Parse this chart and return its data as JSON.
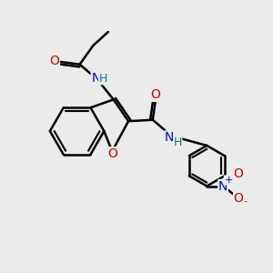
{
  "background_color": "#ebebeb",
  "line_color": "black",
  "bond_width": 1.8,
  "atom_colors": {
    "O": "#cc0000",
    "N": "#0000cc",
    "H": "#008080",
    "C": "black"
  },
  "font_size": 10,
  "fig_size": [
    3.0,
    3.0
  ],
  "dpi": 100
}
